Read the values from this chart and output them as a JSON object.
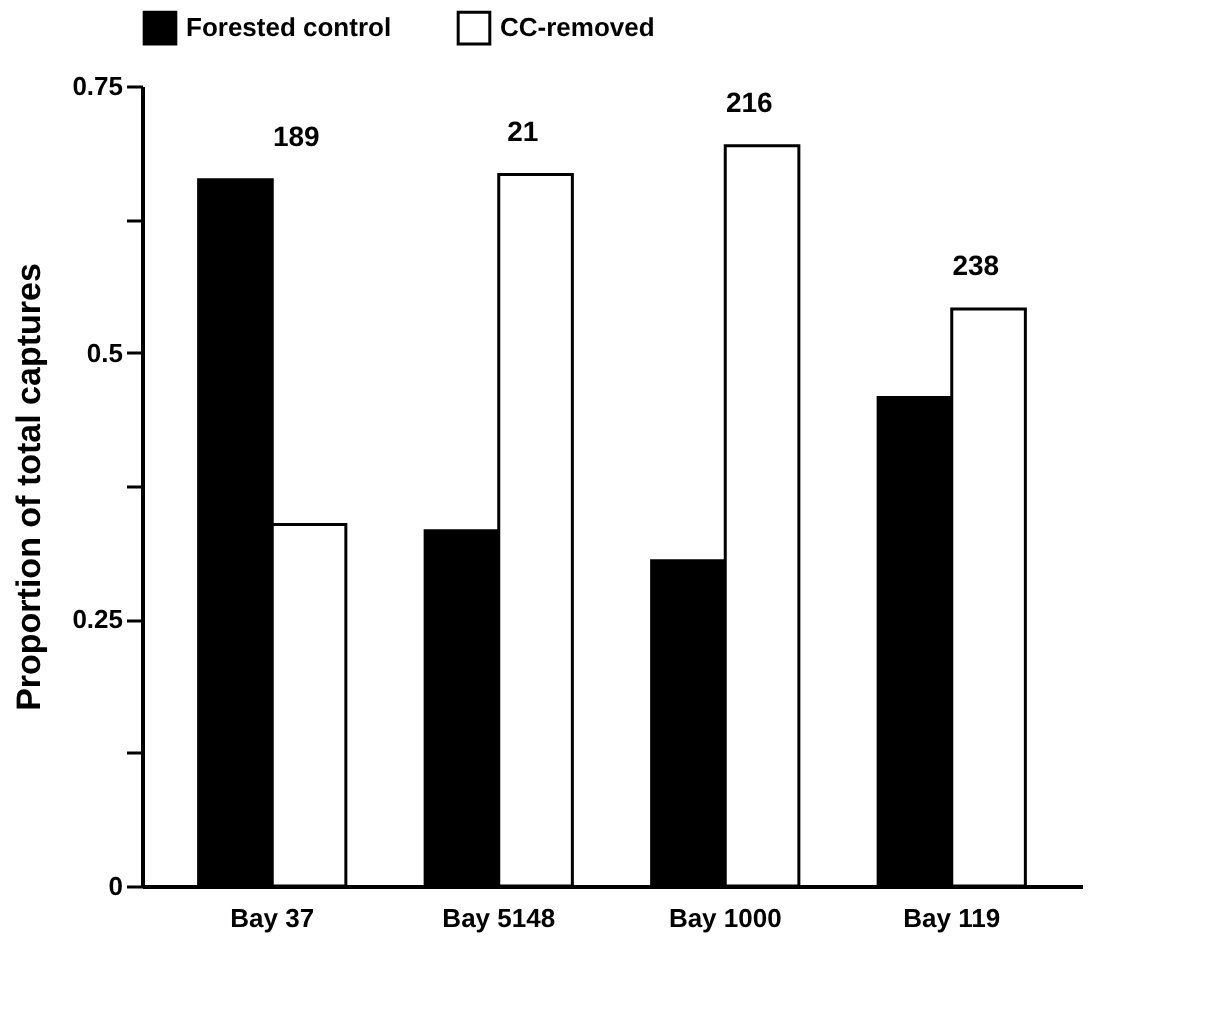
{
  "chart_data": {
    "type": "bar",
    "ylabel": "Proportion of total captures",
    "categories": [
      "Bay 37",
      "Bay 5148",
      "Bay 1000",
      "Bay 119"
    ],
    "series": [
      {
        "name": "Forested control",
        "color": "#000000",
        "values": [
          0.662,
          0.333,
          0.305,
          0.458
        ]
      },
      {
        "name": "CC-removed",
        "color": "#ffffff",
        "values": [
          0.339,
          0.667,
          0.694,
          0.541
        ]
      }
    ],
    "ylim": [
      0,
      0.75
    ],
    "yticks": [
      0,
      {
        "value": 0.125,
        "label": null
      },
      0.25,
      {
        "value": 0.375,
        "label": null
      },
      0.5,
      {
        "value": 0.625,
        "label": null
      },
      0.75
    ],
    "annotations": [
      "189",
      "21",
      "216",
      "238"
    ],
    "grid": false,
    "legend": "top"
  }
}
